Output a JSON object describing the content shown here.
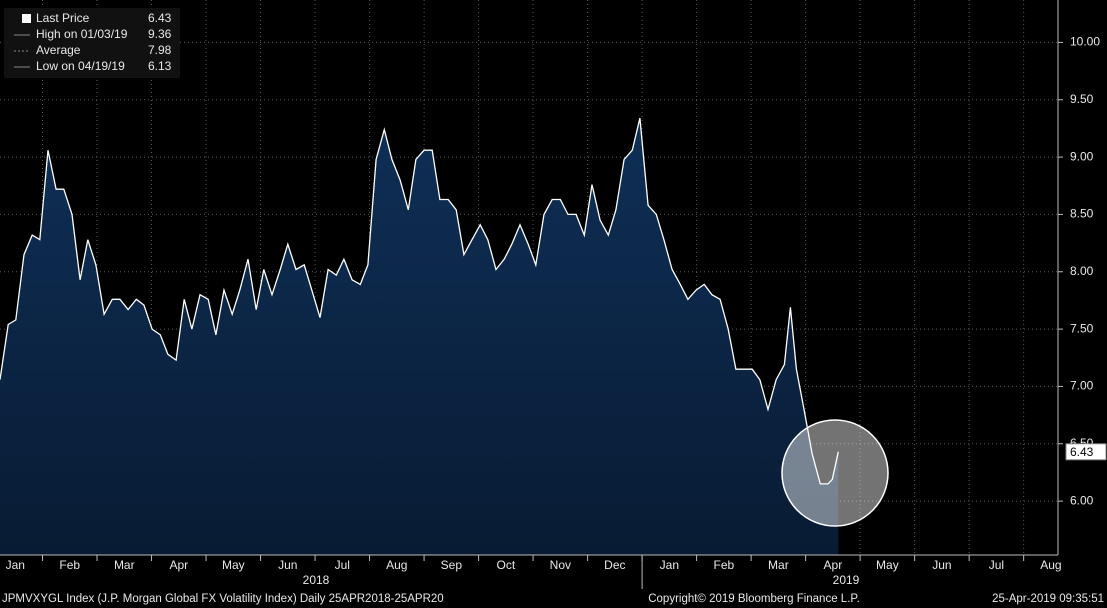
{
  "chart_data": {
    "type": "area",
    "legend": [
      {
        "label": "Last Price",
        "value": 6.43
      },
      {
        "label": "High on 01/03/19",
        "value": 9.36
      },
      {
        "label": "Average",
        "value": 7.98
      },
      {
        "label": "Low on 04/19/19",
        "value": 6.13
      }
    ],
    "x": [
      0.22,
      0.37,
      0.51,
      0.66,
      0.81,
      0.95,
      1.1,
      1.25,
      1.39,
      1.54,
      1.69,
      1.83,
      1.98,
      2.13,
      2.28,
      2.42,
      2.57,
      2.72,
      2.86,
      3.01,
      3.16,
      3.3,
      3.45,
      3.6,
      3.74,
      3.89,
      4.04,
      4.18,
      4.33,
      4.48,
      4.62,
      4.77,
      4.92,
      5.06,
      5.21,
      5.36,
      5.5,
      5.65,
      5.8,
      5.94,
      6.09,
      6.24,
      6.39,
      6.53,
      6.68,
      6.83,
      6.97,
      7.12,
      7.27,
      7.41,
      7.56,
      7.71,
      7.85,
      8.0,
      8.15,
      8.29,
      8.44,
      8.59,
      8.73,
      8.88,
      9.03,
      9.17,
      9.32,
      9.47,
      9.61,
      9.76,
      9.91,
      10.05,
      10.2,
      10.35,
      10.5,
      10.64,
      10.79,
      10.94,
      11.08,
      11.23,
      11.38,
      11.52,
      11.67,
      11.82,
      11.96,
      12.11,
      12.26,
      12.4,
      12.55,
      12.7,
      12.84,
      12.99,
      13.14,
      13.28,
      13.43,
      13.58,
      13.72,
      13.87,
      14.02,
      14.16,
      14.31,
      14.46,
      14.61,
      14.72,
      14.83,
      14.97,
      15.12,
      15.27,
      15.41,
      15.49,
      15.6
    ],
    "series": [
      {
        "name": "Last Price",
        "color": "#ffffff",
        "fill": "#0c2748",
        "values": [
          7.06,
          7.54,
          7.58,
          8.15,
          8.32,
          8.28,
          9.06,
          8.72,
          8.72,
          8.5,
          7.93,
          8.28,
          8.06,
          7.63,
          7.76,
          7.76,
          7.67,
          7.76,
          7.71,
          7.5,
          7.45,
          7.28,
          7.23,
          7.76,
          7.5,
          7.8,
          7.76,
          7.45,
          7.84,
          7.63,
          7.84,
          8.11,
          7.67,
          8.02,
          7.8,
          8.02,
          8.24,
          8.02,
          8.06,
          7.84,
          7.6,
          8.02,
          7.97,
          8.11,
          7.93,
          7.89,
          8.06,
          8.98,
          9.24,
          8.98,
          8.8,
          8.54,
          8.98,
          9.06,
          9.06,
          8.63,
          8.63,
          8.54,
          8.15,
          8.28,
          8.41,
          8.28,
          8.02,
          8.11,
          8.24,
          8.41,
          8.24,
          8.06,
          8.5,
          8.63,
          8.63,
          8.5,
          8.5,
          8.32,
          8.76,
          8.45,
          8.32,
          8.54,
          8.98,
          9.06,
          9.34,
          8.58,
          8.5,
          8.28,
          8.02,
          7.89,
          7.76,
          7.84,
          7.89,
          7.8,
          7.76,
          7.5,
          7.15,
          7.15,
          7.15,
          7.06,
          6.8,
          7.06,
          7.19,
          7.69,
          7.15,
          6.8,
          6.41,
          6.15,
          6.15,
          6.19,
          6.43
        ]
      }
    ],
    "xlim": [
      0.22,
      19.63
    ],
    "xticks": [
      {
        "value": 0,
        "label": "Jan"
      },
      {
        "value": 1,
        "label": "Feb"
      },
      {
        "value": 2,
        "label": "Mar"
      },
      {
        "value": 3,
        "label": "Apr"
      },
      {
        "value": 4,
        "label": "May"
      },
      {
        "value": 5,
        "label": "Jun"
      },
      {
        "value": 6,
        "label": "Jul"
      },
      {
        "value": 7,
        "label": "Aug"
      },
      {
        "value": 8,
        "label": "Sep"
      },
      {
        "value": 9,
        "label": "Oct"
      },
      {
        "value": 10,
        "label": "Nov"
      },
      {
        "value": 11,
        "label": "Dec"
      },
      {
        "value": 12,
        "label": "Jan"
      },
      {
        "value": 13,
        "label": "Feb"
      },
      {
        "value": 14,
        "label": "Mar"
      },
      {
        "value": 15,
        "label": "Apr"
      },
      {
        "value": 16,
        "label": "May"
      },
      {
        "value": 17,
        "label": "Jun"
      },
      {
        "value": 18,
        "label": "Jul"
      },
      {
        "value": 19,
        "label": "Aug"
      }
    ],
    "year_labels": [
      "2018",
      "2019"
    ],
    "ylim": [
      5.53,
      10.37
    ],
    "yticks": [
      {
        "value": 6,
        "label": "6.00"
      },
      {
        "value": 6.5,
        "label": "6.50"
      },
      {
        "value": 7,
        "label": "7.00"
      },
      {
        "value": 7.5,
        "label": "7.50"
      },
      {
        "value": 8,
        "label": "8.00"
      },
      {
        "value": 8.5,
        "label": "8.50"
      },
      {
        "value": 9,
        "label": "9.00"
      },
      {
        "value": 9.5,
        "label": "9.50"
      },
      {
        "value": 10,
        "label": "10.00"
      }
    ],
    "grid": true,
    "footer": {
      "left": "JPMVXYGL Index (J.P. Morgan Global FX Volatility Index)  Daily 25APR2018-25APR20",
      "center": "Copyright© 2019 Bloomberg Finance L.P.",
      "right": "25-Apr-2019 09:35:51"
    }
  }
}
